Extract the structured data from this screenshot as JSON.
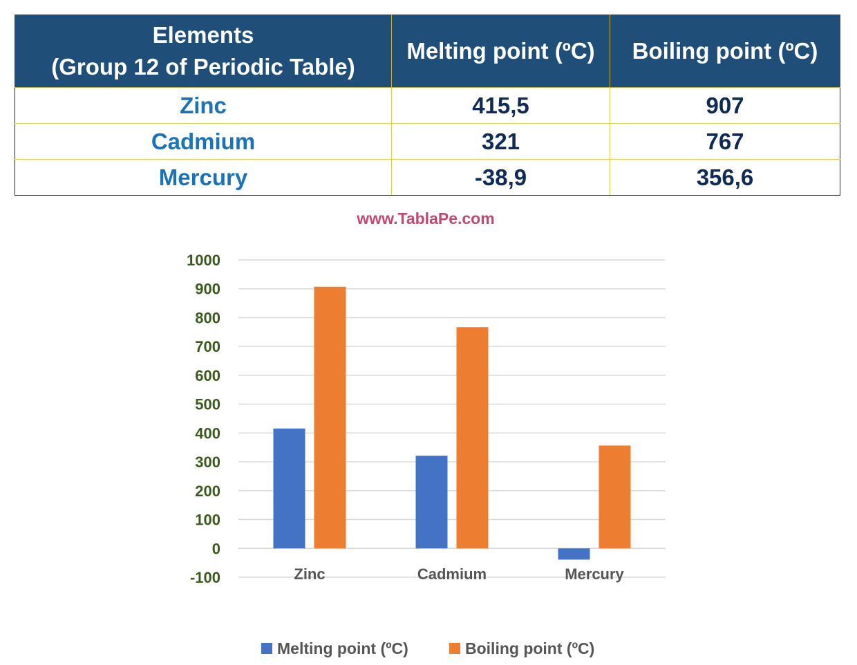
{
  "table": {
    "headers": {
      "element_line1": "Elements",
      "element_line2": "(Group 12 of Periodic Table)",
      "melting": "Melting point (ºC)",
      "boiling": "Boiling point (ºC)"
    },
    "rows": [
      {
        "element": "Zinc",
        "melting": "415,5",
        "boiling": "907"
      },
      {
        "element": "Cadmium",
        "melting": "321",
        "boiling": "767"
      },
      {
        "element": "Mercury",
        "melting": "-38,9",
        "boiling": "356,6"
      }
    ]
  },
  "watermark": "www.TablaPe.com",
  "chart_data": {
    "type": "bar",
    "categories": [
      "Zinc",
      "Cadmium",
      "Mercury"
    ],
    "series": [
      {
        "name": "Melting point (ºC)",
        "values": [
          415.5,
          321,
          -38.9
        ],
        "color": "#4472c4"
      },
      {
        "name": "Boiling point (ºC)",
        "values": [
          907,
          767,
          356.6
        ],
        "color": "#ed7d31"
      }
    ],
    "ylim": [
      -100,
      1000
    ],
    "yticks": [
      "-100",
      "0",
      "100",
      "200",
      "300",
      "400",
      "500",
      "600",
      "700",
      "800",
      "900",
      "1000"
    ],
    "grid": true,
    "legend": "bottom",
    "title": "",
    "xlabel": "",
    "ylabel": ""
  }
}
